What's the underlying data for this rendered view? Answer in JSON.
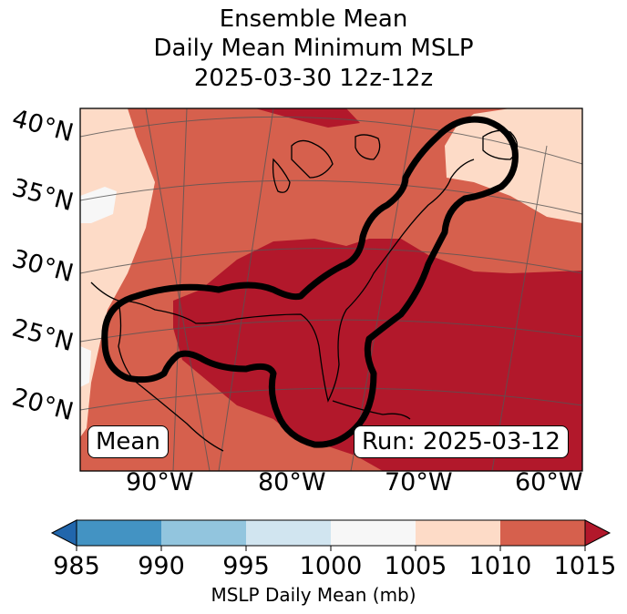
{
  "title": {
    "line1": "Ensemble Mean",
    "line2": "Daily Mean Minimum MSLP",
    "line3": "2025-03-30 12z-12z"
  },
  "map": {
    "lat_labels": [
      "40°N",
      "35°N",
      "30°N",
      "25°N",
      "20°N"
    ],
    "lon_labels": [
      "90°W",
      "80°W",
      "70°W",
      "60°W"
    ],
    "mean_box": "Mean",
    "run_box": "Run: 2025-03-12",
    "contour": "ensemble probability outline (black)"
  },
  "colorbar": {
    "ticks": [
      "985",
      "990",
      "995",
      "1000",
      "1005",
      "1010",
      "1015"
    ],
    "label": "MSLP Daily Mean (mb)",
    "colors": [
      "#2166ac",
      "#4393c3",
      "#92c5de",
      "#d1e5f0",
      "#f7f7f7",
      "#fddbc7",
      "#d6604d",
      "#b2182b"
    ]
  }
}
